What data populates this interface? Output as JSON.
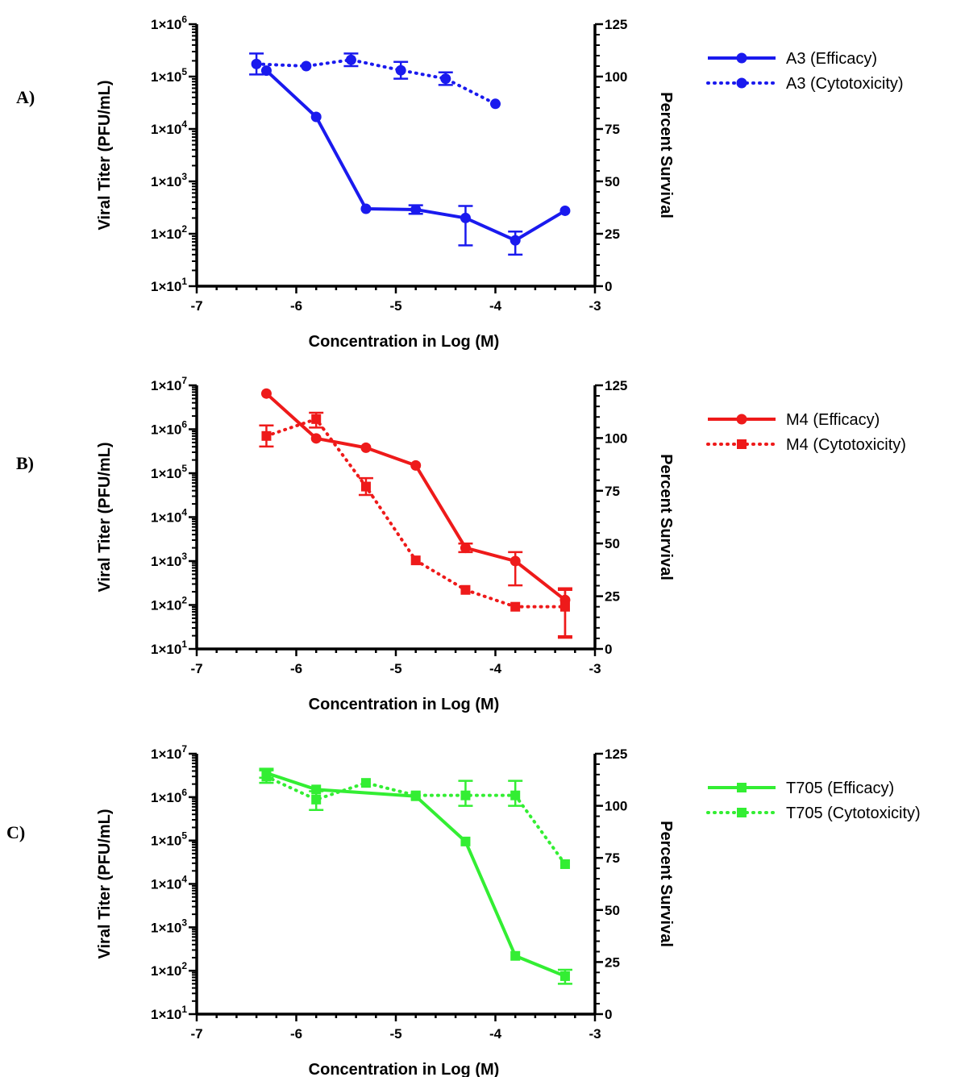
{
  "chart_data": [
    {
      "type": "line",
      "panel_label": "A)",
      "xlabel": "Concentration in Log (M)",
      "ylabel": "Viral Titer (PFU/mL)",
      "y2label": "Percent Survival",
      "xlim": [
        -7,
        -3
      ],
      "xticks": [
        "-7",
        "-6",
        "-5",
        "-4",
        "-3"
      ],
      "ylim_log": [
        1,
        6
      ],
      "y_ticks": [
        "1×10^1",
        "1×10^2",
        "1×10^3",
        "1×10^4",
        "1×10^5",
        "1×10^6"
      ],
      "y2lim": [
        0,
        125
      ],
      "y2_ticks": [
        "0",
        "25",
        "50",
        "75",
        "100",
        "125"
      ],
      "color": "#1a1aee",
      "legend_position": "right",
      "series": [
        {
          "name": "A3 (Efficacy)",
          "axis": "left",
          "style": "solid",
          "marker": "circle",
          "x": [
            -6.3,
            -5.8,
            -5.3,
            -4.8,
            -4.3,
            -3.8,
            -3.3
          ],
          "y": [
            130000,
            17000,
            300,
            290,
            200,
            75,
            275
          ],
          "err_low": [
            null,
            null,
            null,
            240,
            60,
            40,
            null
          ],
          "err_high": [
            null,
            null,
            null,
            350,
            340,
            110,
            null
          ]
        },
        {
          "name": "A3 (Cytotoxicity)",
          "axis": "right",
          "style": "dotted",
          "marker": "circle",
          "x": [
            -6.4,
            -5.9,
            -5.45,
            -4.95,
            -4.5,
            -4.0
          ],
          "y": [
            106,
            105,
            108,
            103,
            99,
            87
          ],
          "err_low": [
            101,
            null,
            105,
            99,
            96,
            null
          ],
          "err_high": [
            111,
            null,
            111,
            107,
            102,
            null
          ]
        }
      ]
    },
    {
      "type": "line",
      "panel_label": "B)",
      "xlabel": "Concentration in Log (M)",
      "ylabel": "Viral Titer (PFU/mL)",
      "y2label": "Percent Survival",
      "xlim": [
        -7,
        -3
      ],
      "xticks": [
        "-7",
        "-6",
        "-5",
        "-4",
        "-3"
      ],
      "ylim_log": [
        1,
        7
      ],
      "y_ticks": [
        "1×10^1",
        "1×10^2",
        "1×10^3",
        "1×10^4",
        "1×10^5",
        "1×10^6",
        "1×10^7"
      ],
      "y2lim": [
        0,
        125
      ],
      "y2_ticks": [
        "0",
        "25",
        "50",
        "75",
        "100",
        "125"
      ],
      "color": "#ee1a1a",
      "legend_position": "right",
      "series": [
        {
          "name": "M4 (Efficacy)",
          "axis": "left",
          "style": "solid",
          "marker": "circle",
          "x": [
            -6.3,
            -5.8,
            -5.3,
            -4.8,
            -4.3,
            -3.8,
            -3.3
          ],
          "y": [
            6500000,
            620000,
            380000,
            150000,
            2000,
            1000,
            130
          ],
          "err_low": [
            null,
            null,
            null,
            null,
            1600,
            280,
            18
          ],
          "err_high": [
            null,
            null,
            null,
            null,
            2500,
            1600,
            240
          ]
        },
        {
          "name": "M4 (Cytotoxicity)",
          "axis": "right",
          "style": "dotted",
          "marker": "square",
          "x": [
            -6.3,
            -5.8,
            -5.3,
            -4.8,
            -4.3,
            -3.8,
            -3.3
          ],
          "y": [
            101,
            109,
            77,
            42,
            28,
            20,
            20
          ],
          "err_low": [
            96,
            105,
            73,
            null,
            null,
            null,
            6
          ],
          "err_high": [
            106,
            112,
            81,
            null,
            null,
            null,
            28
          ]
        }
      ]
    },
    {
      "type": "line",
      "panel_label": "C)",
      "xlabel": "Concentration in Log (M)",
      "ylabel": "Viral Titer (PFU/mL)",
      "y2label": "Percent Survival",
      "xlim": [
        -7,
        -3
      ],
      "xticks": [
        "-7",
        "-6",
        "-5",
        "-4",
        "-3"
      ],
      "ylim_log": [
        1,
        7
      ],
      "y_ticks": [
        "1×10^1",
        "1×10^2",
        "1×10^3",
        "1×10^4",
        "1×10^5",
        "1×10^6",
        "1×10^7"
      ],
      "y2lim": [
        0,
        125
      ],
      "y2_ticks": [
        "0",
        "25",
        "50",
        "75",
        "100",
        "125"
      ],
      "color": "#33ee33",
      "legend_position": "right",
      "series": [
        {
          "name": "T705 (Efficacy)",
          "axis": "left",
          "style": "solid",
          "marker": "square",
          "x": [
            -6.3,
            -5.8,
            -4.8,
            -4.3,
            -3.8,
            -3.3
          ],
          "y": [
            3600000,
            1500000,
            1050000,
            95000,
            220,
            75
          ],
          "err_low": [
            2800000,
            null,
            null,
            null,
            null,
            50
          ],
          "err_high": [
            4500000,
            null,
            null,
            null,
            null,
            105
          ]
        },
        {
          "name": "T705 (Cytotoxicity)",
          "axis": "right",
          "style": "dotted",
          "marker": "square",
          "x": [
            -6.3,
            -5.8,
            -5.3,
            -4.8,
            -4.3,
            -3.8,
            -3.3
          ],
          "y": [
            114,
            103,
            111,
            105,
            105,
            105,
            72
          ],
          "err_low": [
            111,
            98,
            null,
            null,
            100,
            100,
            null
          ],
          "err_high": [
            117,
            107,
            null,
            null,
            112,
            112,
            null
          ]
        }
      ]
    }
  ]
}
